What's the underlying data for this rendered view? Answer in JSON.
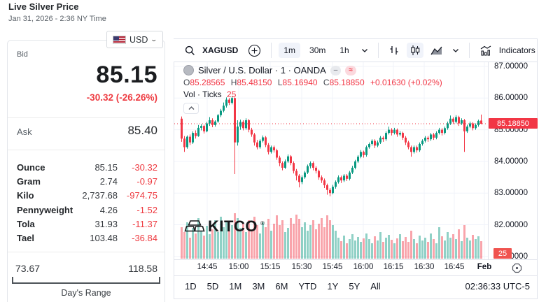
{
  "header": {
    "title": "Live Silver Price",
    "subtitle": "Jan 31, 2026 - 2:36 NY Time"
  },
  "quote_panel": {
    "currency": "USD",
    "bid_label": "Bid",
    "bid": "85.15",
    "change": "-30.32 (-26.26%)",
    "ask_label": "Ask",
    "ask": "85.40",
    "units": [
      {
        "label": "Ounce",
        "value": "85.15",
        "change": "-30.32"
      },
      {
        "label": "Gram",
        "value": "2.74",
        "change": "-0.97"
      },
      {
        "label": "Kilo",
        "value": "2,737.68",
        "change": "-974.75"
      },
      {
        "label": "Pennyweight",
        "value": "4.26",
        "change": "-1.52"
      },
      {
        "label": "Tola",
        "value": "31.93",
        "change": "-11.37"
      },
      {
        "label": "Tael",
        "value": "103.48",
        "change": "-36.84"
      }
    ],
    "range": {
      "low": "73.67",
      "high": "118.58",
      "label": "Day's Range"
    }
  },
  "chart": {
    "toolbar": {
      "symbol": "XAGUSD",
      "intervals": [
        "1m",
        "30m",
        "1h"
      ],
      "selected_interval": "1m",
      "indicators_label": "Indicators"
    },
    "legend": {
      "title": "Silver / U.S. Dollar · 1 · OANDA",
      "hide_pill": "–",
      "status_pill": "≈",
      "o_label": "O",
      "o": "85.28565",
      "h_label": "H",
      "h": "85.48150",
      "l_label": "L",
      "l": "85.16940",
      "c_label": "C",
      "c": "85.18850",
      "change": "+0.01630 (+0.02%)",
      "vol_label": "Vol · Ticks",
      "vol": "25"
    },
    "watermark": "KITCO",
    "price_axis": {
      "labels": [
        "87.00000",
        "86.00000",
        "85.00000",
        "84.00000",
        "83.00000",
        "82.00000",
        "81.00000"
      ],
      "last_price_label": "85.18850",
      "last_vol_label": "25"
    },
    "time_axis": [
      "14:45",
      "15:00",
      "15:15",
      "15:30",
      "15:45",
      "16:00",
      "16:15",
      "16:30",
      "16:45",
      "Feb"
    ],
    "ranges": [
      "1D",
      "5D",
      "1M",
      "3M",
      "6M",
      "YTD",
      "1Y",
      "5Y",
      "All"
    ],
    "clock": "02:36:33 UTC-5"
  },
  "colors": {
    "up": "#089981",
    "down": "#f23645",
    "kitco_red": "#ee3b41",
    "last_price_bg": "#f23645"
  },
  "chart_data": {
    "type": "candlestick",
    "symbol": "XAGUSD",
    "interval": "1m",
    "visible_time_range": [
      "14:33",
      "17:00"
    ],
    "ylim": [
      80.8,
      87.3
    ],
    "candles": [
      [
        85.35,
        85.42,
        84.62,
        84.72
      ],
      [
        84.72,
        84.8,
        84.3,
        84.45
      ],
      [
        84.45,
        84.82,
        84.4,
        84.78
      ],
      [
        84.78,
        84.85,
        84.52,
        84.6
      ],
      [
        84.6,
        84.95,
        84.55,
        84.9
      ],
      [
        84.9,
        84.98,
        84.72,
        84.8
      ],
      [
        84.8,
        85.15,
        84.78,
        85.06
      ],
      [
        85.06,
        85.18,
        84.98,
        85.12
      ],
      [
        85.12,
        85.16,
        84.88,
        84.95
      ],
      [
        84.95,
        85.25,
        84.92,
        85.2
      ],
      [
        85.2,
        85.4,
        85.12,
        85.3
      ],
      [
        85.3,
        85.36,
        85.08,
        85.15
      ],
      [
        85.15,
        85.3,
        85.1,
        85.26
      ],
      [
        85.26,
        85.5,
        85.22,
        85.46
      ],
      [
        85.46,
        85.66,
        85.4,
        85.6
      ],
      [
        85.6,
        85.86,
        85.55,
        85.76
      ],
      [
        85.76,
        86.02,
        85.7,
        85.95
      ],
      [
        85.95,
        86.0,
        85.78,
        85.85
      ],
      [
        85.85,
        86.05,
        85.8,
        86.0
      ],
      [
        86.0,
        86.02,
        83.6,
        84.6
      ],
      [
        84.6,
        85.3,
        84.5,
        85.1
      ],
      [
        85.1,
        85.32,
        85.0,
        85.25
      ],
      [
        85.25,
        85.3,
        84.98,
        85.05
      ],
      [
        85.05,
        85.36,
        85.0,
        85.3
      ],
      [
        85.3,
        85.34,
        84.92,
        85.0
      ],
      [
        85.0,
        85.06,
        84.78,
        84.85
      ],
      [
        84.85,
        84.9,
        84.5,
        84.6
      ],
      [
        84.6,
        84.68,
        84.38,
        84.45
      ],
      [
        84.45,
        84.7,
        84.4,
        84.65
      ],
      [
        84.65,
        84.82,
        84.6,
        84.76
      ],
      [
        84.76,
        84.8,
        84.45,
        84.52
      ],
      [
        84.52,
        84.58,
        84.22,
        84.3
      ],
      [
        84.3,
        84.5,
        84.25,
        84.45
      ],
      [
        84.45,
        84.5,
        84.28,
        84.35
      ],
      [
        84.35,
        84.4,
        84.05,
        84.12
      ],
      [
        84.12,
        84.18,
        83.85,
        83.95
      ],
      [
        83.95,
        84.0,
        83.72,
        83.8
      ],
      [
        83.8,
        84.06,
        83.76,
        84.0
      ],
      [
        84.0,
        84.22,
        83.95,
        84.16
      ],
      [
        84.16,
        84.2,
        83.88,
        83.95
      ],
      [
        83.95,
        84.0,
        83.62,
        83.7
      ],
      [
        83.7,
        83.76,
        83.4,
        83.55
      ],
      [
        83.55,
        83.6,
        83.18,
        83.35
      ],
      [
        83.35,
        83.56,
        83.28,
        83.5
      ],
      [
        83.5,
        83.7,
        83.45,
        83.65
      ],
      [
        83.65,
        83.9,
        83.6,
        83.85
      ],
      [
        83.85,
        84.0,
        83.78,
        83.95
      ],
      [
        83.95,
        84.0,
        83.72,
        83.8
      ],
      [
        83.8,
        83.85,
        83.62,
        83.7
      ],
      [
        83.7,
        83.74,
        83.42,
        83.5
      ],
      [
        83.5,
        83.56,
        83.32,
        83.4
      ],
      [
        83.4,
        83.46,
        83.16,
        83.25
      ],
      [
        83.25,
        83.3,
        82.95,
        83.1
      ],
      [
        83.1,
        83.16,
        82.9,
        83.0
      ],
      [
        83.0,
        83.26,
        82.96,
        83.2
      ],
      [
        83.2,
        83.4,
        83.14,
        83.35
      ],
      [
        83.35,
        83.56,
        83.3,
        83.5
      ],
      [
        83.5,
        83.55,
        83.32,
        83.4
      ],
      [
        83.4,
        83.6,
        83.35,
        83.55
      ],
      [
        83.55,
        83.6,
        83.38,
        83.45
      ],
      [
        83.45,
        83.7,
        83.4,
        83.65
      ],
      [
        83.65,
        83.86,
        83.6,
        83.8
      ],
      [
        83.8,
        84.05,
        83.75,
        84.0
      ],
      [
        84.0,
        84.2,
        83.95,
        84.15
      ],
      [
        84.15,
        84.36,
        84.1,
        84.3
      ],
      [
        84.3,
        84.34,
        84.12,
        84.2
      ],
      [
        84.2,
        84.5,
        84.15,
        84.45
      ],
      [
        84.45,
        84.6,
        84.4,
        84.55
      ],
      [
        84.55,
        84.7,
        84.5,
        84.65
      ],
      [
        84.65,
        84.7,
        84.42,
        84.5
      ],
      [
        84.5,
        84.66,
        84.45,
        84.6
      ],
      [
        84.6,
        84.8,
        84.55,
        84.75
      ],
      [
        84.75,
        84.8,
        84.62,
        84.7
      ],
      [
        84.7,
        84.95,
        84.65,
        84.9
      ],
      [
        84.9,
        85.1,
        84.85,
        85.0
      ],
      [
        85.0,
        85.05,
        84.82,
        84.9
      ],
      [
        84.9,
        85.06,
        84.85,
        85.0
      ],
      [
        85.0,
        85.04,
        84.78,
        84.85
      ],
      [
        84.85,
        84.96,
        84.8,
        84.9
      ],
      [
        84.9,
        84.94,
        84.68,
        84.75
      ],
      [
        84.75,
        84.8,
        84.52,
        84.6
      ],
      [
        84.6,
        84.65,
        84.38,
        84.45
      ],
      [
        84.45,
        84.5,
        84.15,
        84.3
      ],
      [
        84.3,
        84.5,
        84.25,
        84.45
      ],
      [
        84.45,
        84.5,
        84.28,
        84.35
      ],
      [
        84.35,
        84.6,
        84.3,
        84.55
      ],
      [
        84.55,
        84.7,
        84.5,
        84.65
      ],
      [
        84.65,
        84.8,
        84.6,
        84.75
      ],
      [
        84.75,
        84.8,
        84.62,
        84.7
      ],
      [
        84.7,
        84.9,
        84.65,
        84.85
      ],
      [
        84.85,
        84.9,
        84.68,
        84.75
      ],
      [
        84.75,
        84.95,
        84.7,
        84.9
      ],
      [
        84.9,
        85.06,
        84.85,
        85.0
      ],
      [
        85.0,
        85.05,
        84.82,
        84.9
      ],
      [
        84.9,
        85.1,
        84.85,
        85.05
      ],
      [
        85.05,
        85.26,
        85.0,
        85.2
      ],
      [
        85.2,
        85.45,
        85.15,
        85.35
      ],
      [
        85.35,
        85.4,
        85.18,
        85.25
      ],
      [
        85.25,
        85.46,
        85.2,
        85.4
      ],
      [
        85.4,
        85.44,
        85.12,
        85.2
      ],
      [
        85.2,
        85.36,
        85.15,
        85.3
      ],
      [
        85.3,
        85.34,
        84.3,
        84.95
      ],
      [
        84.95,
        85.16,
        84.9,
        85.1
      ],
      [
        85.1,
        85.26,
        85.05,
        85.2
      ],
      [
        85.2,
        85.24,
        84.98,
        85.05
      ],
      [
        85.05,
        85.2,
        85.0,
        85.15
      ],
      [
        85.15,
        85.32,
        85.1,
        85.28
      ],
      [
        85.29,
        85.48,
        85.17,
        85.19
      ]
    ],
    "volumes": [
      45,
      38,
      52,
      30,
      44,
      36,
      58,
      40,
      33,
      47,
      35,
      42,
      55,
      38,
      60,
      45,
      52,
      40,
      48,
      65,
      58,
      44,
      50,
      38,
      55,
      42,
      60,
      48,
      36,
      52,
      45,
      57,
      40,
      50,
      62,
      48,
      55,
      38,
      44,
      58,
      50,
      63,
      57,
      45,
      52,
      40,
      48,
      55,
      42,
      50,
      58,
      45,
      62,
      55,
      48,
      40,
      30,
      25,
      33,
      22,
      28,
      35,
      26,
      31,
      24,
      29,
      36,
      28,
      22,
      32,
      26,
      38,
      24,
      30,
      34,
      27,
      22,
      29,
      35,
      25,
      31,
      24,
      40,
      28,
      22,
      33,
      26,
      30,
      24,
      36,
      28,
      22,
      45,
      32,
      26,
      38,
      30,
      35,
      28,
      42,
      25,
      48,
      30,
      26,
      34,
      28,
      32,
      25
    ],
    "last_price": 85.1885
  }
}
